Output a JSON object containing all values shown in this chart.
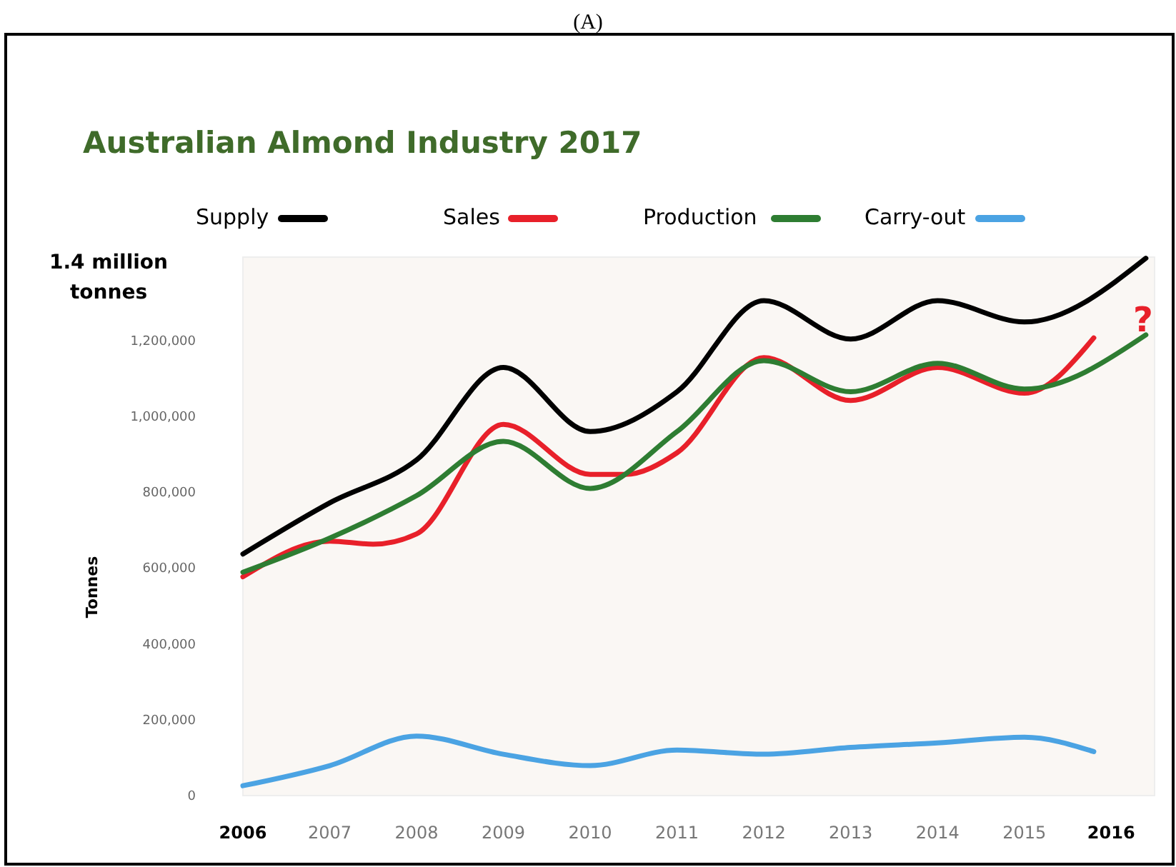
{
  "chart_data": {
    "type": "line",
    "title": "Australian Almond Industry 2017",
    "ylabel": "Tonnes",
    "annotations": [
      "(A)",
      "1.4 million tonnes",
      "?"
    ],
    "legend": "top",
    "grid": false,
    "marker": "none",
    "line_style": "solid",
    "xlim": [
      2006,
      2016.5
    ],
    "xticks": [
      2006,
      2007,
      2008,
      2009,
      2010,
      2011,
      2012,
      2013,
      2014,
      2015,
      2016
    ],
    "ylim": [
      0,
      1420000
    ],
    "yticks": [
      {
        "value": 0,
        "label": "0"
      },
      {
        "value": 200000,
        "label": "200,000"
      },
      {
        "value": 400000,
        "label": "400,000"
      },
      {
        "value": 600000,
        "label": "600,000"
      },
      {
        "value": 800000,
        "label": "800,000"
      },
      {
        "value": 1000000,
        "label": "1,000,000"
      },
      {
        "value": 1200000,
        "label": "1,200,000"
      }
    ],
    "series": [
      {
        "name": "Supply",
        "color": "#000000",
        "x": [
          2006,
          2007,
          2008,
          2009,
          2010,
          2011,
          2012,
          2013,
          2014,
          2015,
          2016.4
        ],
        "values": [
          637000,
          772000,
          885000,
          1129000,
          960000,
          1065000,
          1305000,
          1204000,
          1305000,
          1249000,
          1417000
        ]
      },
      {
        "name": "Sales",
        "color": "#e8202a",
        "x": [
          2006,
          2007,
          2007.5,
          2008,
          2009,
          2010,
          2010.4,
          2011,
          2012,
          2013,
          2014,
          2015,
          2015.8
        ],
        "values": [
          577000,
          671000,
          663000,
          690000,
          979000,
          847000,
          847000,
          904000,
          1155000,
          1042000,
          1129000,
          1061000,
          1207000
        ]
      },
      {
        "name": "Production",
        "color": "#2e7d32",
        "x": [
          2006,
          2007,
          2008,
          2009,
          2010,
          2011,
          2012,
          2013,
          2014,
          2015,
          2016.4
        ],
        "values": [
          589000,
          679000,
          791000,
          934000,
          810000,
          960000,
          1147000,
          1065000,
          1140000,
          1072000,
          1215000
        ]
      },
      {
        "name": "Carry-out",
        "color": "#4ba3e3",
        "x": [
          2006,
          2007,
          2008,
          2009,
          2010,
          2011,
          2012,
          2013,
          2014,
          2015,
          2015.8
        ],
        "values": [
          26000,
          79000,
          157000,
          109000,
          79000,
          120000,
          109000,
          127000,
          139000,
          154000,
          116000
        ]
      }
    ]
  }
}
